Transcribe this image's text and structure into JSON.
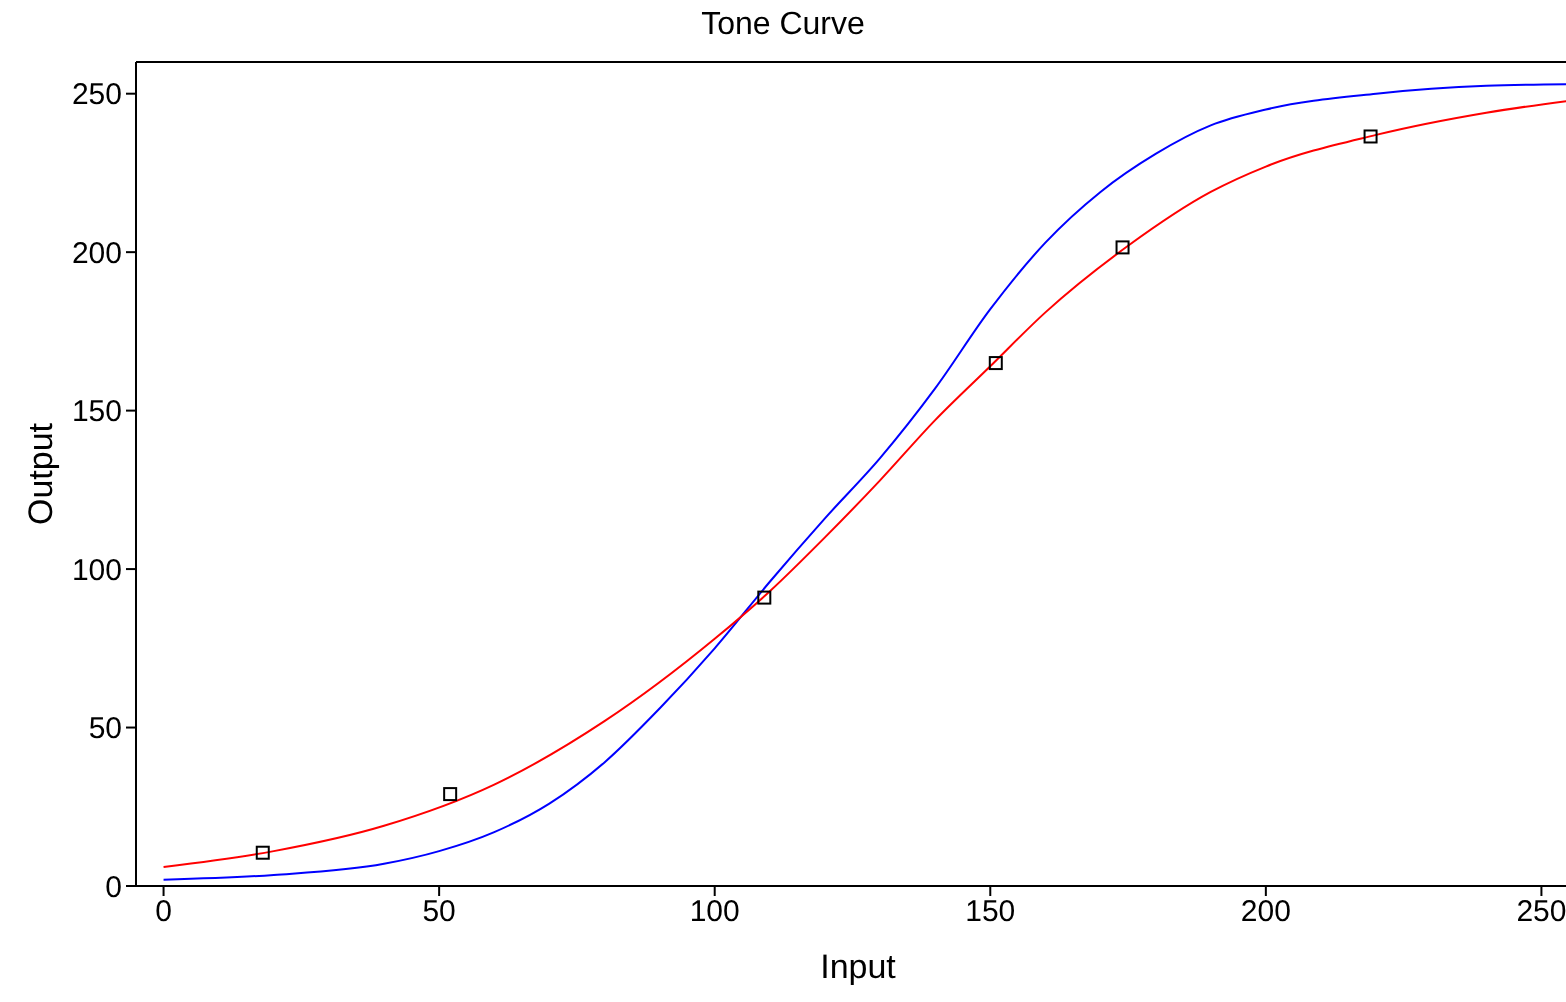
{
  "chart_data": {
    "type": "line",
    "title": "Tone Curve",
    "xlabel": "Input",
    "ylabel": "Output",
    "xlim": [
      -5,
      257
    ],
    "ylim": [
      0,
      260
    ],
    "xticks": [
      0,
      50,
      100,
      150,
      200,
      250
    ],
    "yticks": [
      0,
      50,
      100,
      150,
      200,
      250
    ],
    "series": [
      {
        "color": "#0000ff",
        "marker": "none",
        "line_style": "solid",
        "x": [
          0,
          20,
          40,
          50,
          60,
          70,
          80,
          90,
          100,
          110,
          120,
          130,
          140,
          150,
          160,
          170,
          180,
          190,
          200,
          220,
          240,
          256
        ],
        "values": [
          2,
          3.5,
          7,
          11,
          17,
          26,
          39,
          56,
          75,
          96,
          116,
          135,
          157,
          182,
          203,
          219,
          231,
          240,
          245,
          250,
          252.5,
          253
        ]
      },
      {
        "color": "#ff0000",
        "marker": "none",
        "line_style": "solid",
        "x": [
          0,
          20,
          40,
          60,
          80,
          100,
          110,
          120,
          130,
          140,
          150,
          160,
          175,
          190,
          200,
          220,
          240,
          256
        ],
        "values": [
          6,
          11,
          19,
          32,
          52,
          78,
          93,
          110,
          128,
          147,
          164,
          181,
          202,
          219,
          227,
          237,
          244,
          248
        ]
      },
      {
        "type": "scatter",
        "color": "#000000",
        "marker": "square",
        "x": [
          18,
          52,
          109,
          151,
          174,
          219
        ],
        "values": [
          10.5,
          29,
          91,
          165,
          201.5,
          236.5
        ]
      }
    ]
  }
}
